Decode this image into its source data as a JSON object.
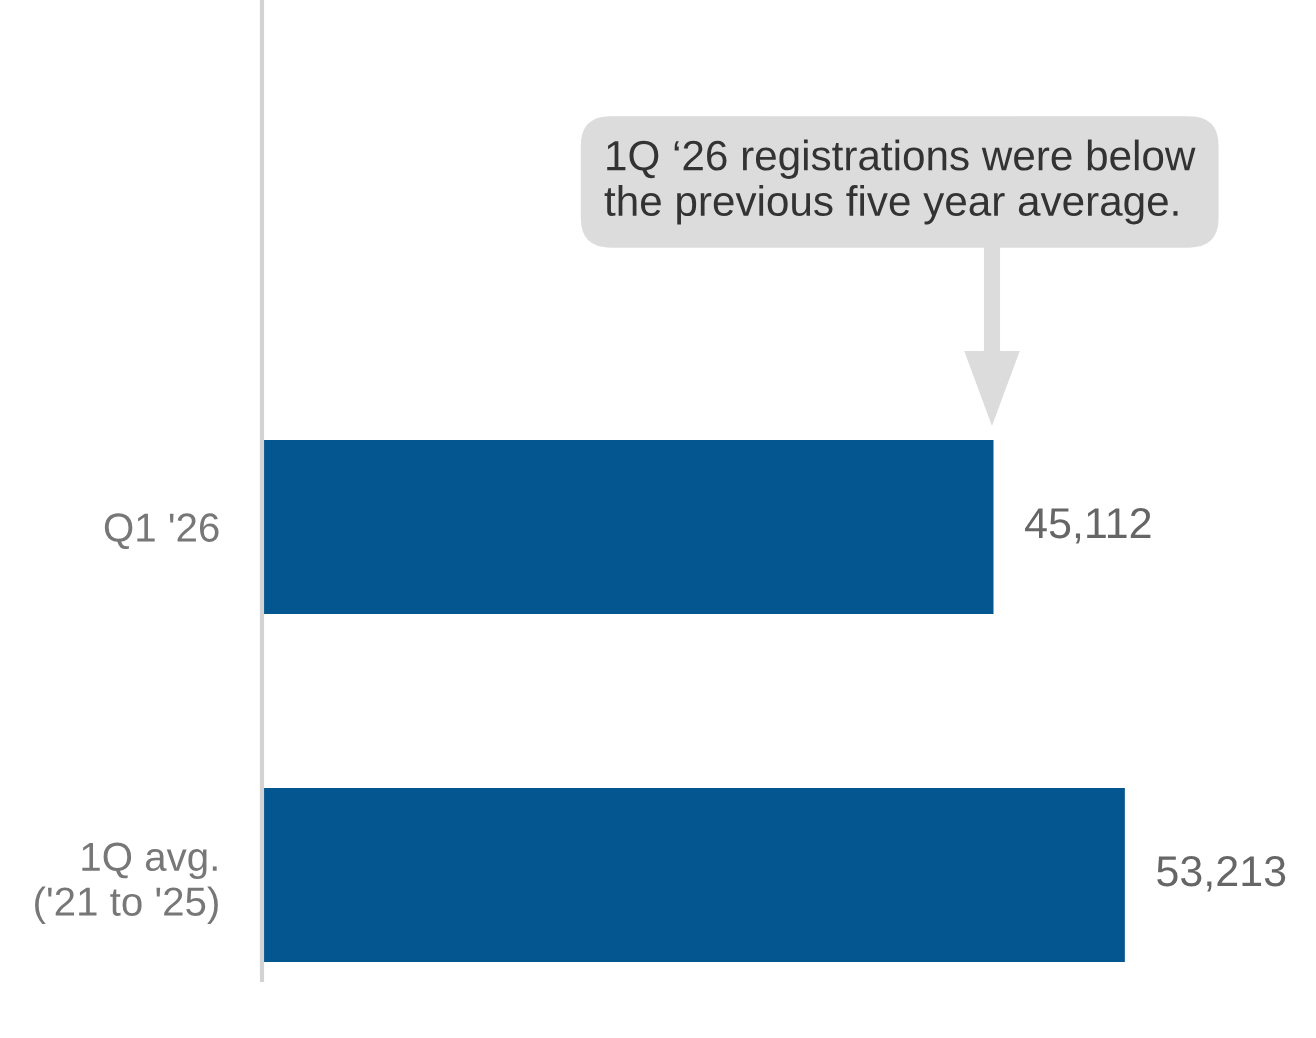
{
  "chart_data": {
    "type": "bar",
    "orientation": "horizontal",
    "categories": [
      "Q1 '26",
      "1Q avg.\n('21 to '25)"
    ],
    "values": [
      45112,
      53213
    ],
    "color": "#03568f",
    "value_labels": [
      "45,112",
      "53,213"
    ],
    "tick_labels": "y",
    "annotations": [
      "1Q ‘26 registrations were below\nthe previous five year average."
    ]
  }
}
